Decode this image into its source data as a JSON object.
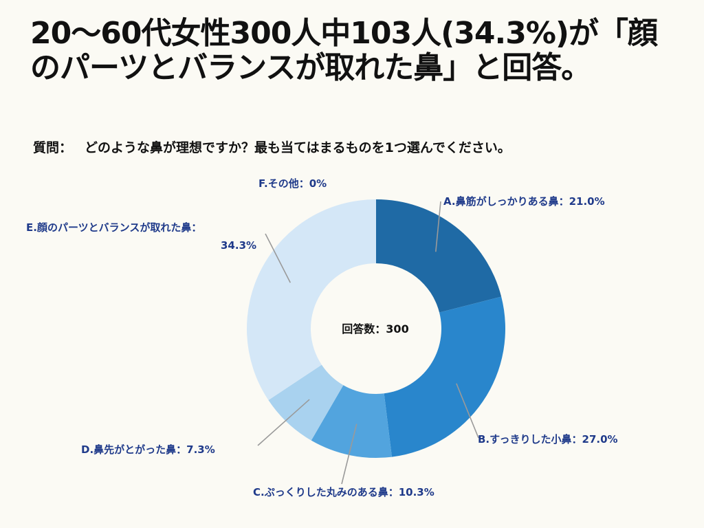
{
  "headline": "20～60代女性300人中103人(34.3%)が「顔のパーツとバランスが取れた鼻」と回答。",
  "question": {
    "label": "質問：",
    "text": "どのような鼻が理想ですか？最も当てはまるものを1つ選んでください。"
  },
  "chart_data": {
    "type": "pie",
    "center_text": "回答数：300",
    "categories": [
      "A.鼻筋がしっかりある鼻",
      "B.すっきりした小鼻",
      "C.ぷっくりした丸みのある鼻",
      "D.鼻先がとがった鼻",
      "E.顔のパーツとバランスが取れた鼻",
      "F.その他"
    ],
    "values": [
      21.0,
      27.0,
      10.3,
      7.3,
      34.3,
      0
    ],
    "colors": [
      "#1f6aa5",
      "#2986cc",
      "#52a4de",
      "#a9d2ef",
      "#d4e7f7",
      "#e8f2fb"
    ],
    "labels": {
      "a": "A.鼻筋がしっかりある鼻：21.0%",
      "b": "B.すっきりした小鼻：27.0%",
      "c": "C.ぷっくりした丸みのある鼻：10.3%",
      "d": "D.鼻先がとがった鼻：7.3%",
      "e_line1": "E.顔のパーツとバランスが取れた鼻：",
      "e_line2": "34.3%",
      "f": "F.その他：0%"
    },
    "label_color": "#1f3a8a",
    "leader_line_color": "#9a9a9a"
  }
}
